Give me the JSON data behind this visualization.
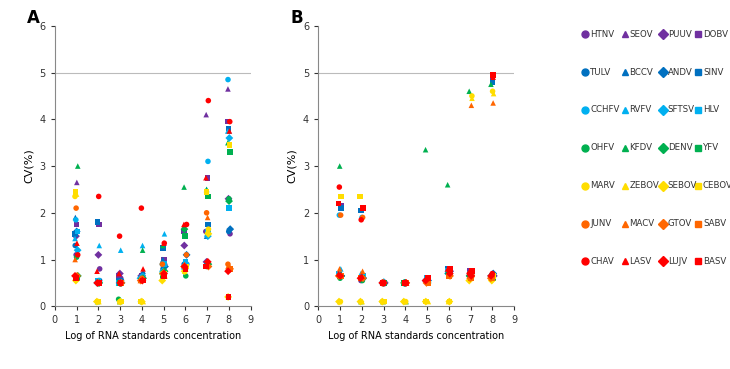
{
  "panel_A_label": "A",
  "panel_B_label": "B",
  "xlabel": "Log of RNA standards concentration",
  "ylabel": "CV(%)",
  "ylim": [
    0,
    6
  ],
  "xlim": [
    0,
    9
  ],
  "yticks": [
    0,
    1,
    2,
    3,
    4,
    5,
    6
  ],
  "xticks": [
    0,
    1,
    2,
    3,
    4,
    5,
    6,
    7,
    8,
    9
  ],
  "hline_y": 5,
  "series": [
    {
      "name": "HTNV",
      "color": "#7030A0",
      "marker": "o"
    },
    {
      "name": "SEOV",
      "color": "#7030A0",
      "marker": "^"
    },
    {
      "name": "PUUV",
      "color": "#7030A0",
      "marker": "D"
    },
    {
      "name": "DOBV",
      "color": "#7030A0",
      "marker": "s"
    },
    {
      "name": "TULV",
      "color": "#0070C0",
      "marker": "o"
    },
    {
      "name": "BCCV",
      "color": "#0070C0",
      "marker": "^"
    },
    {
      "name": "ANDV",
      "color": "#0070C0",
      "marker": "D"
    },
    {
      "name": "SINV",
      "color": "#0070C0",
      "marker": "s"
    },
    {
      "name": "CCHFV",
      "color": "#00B0F0",
      "marker": "o"
    },
    {
      "name": "RVFV",
      "color": "#00B0F0",
      "marker": "^"
    },
    {
      "name": "SFTSV",
      "color": "#00B0F0",
      "marker": "D"
    },
    {
      "name": "HLV",
      "color": "#00B0F0",
      "marker": "s"
    },
    {
      "name": "OHFV",
      "color": "#00B050",
      "marker": "o"
    },
    {
      "name": "KFDV",
      "color": "#00B050",
      "marker": "^"
    },
    {
      "name": "DENV",
      "color": "#00B050",
      "marker": "D"
    },
    {
      "name": "YFV",
      "color": "#00B050",
      "marker": "s"
    },
    {
      "name": "MARV",
      "color": "#FFDD00",
      "marker": "o"
    },
    {
      "name": "ZEBOV",
      "color": "#FFDD00",
      "marker": "^"
    },
    {
      "name": "SEBOV",
      "color": "#FFDD00",
      "marker": "D"
    },
    {
      "name": "CEBOV",
      "color": "#FFDD00",
      "marker": "s"
    },
    {
      "name": "JUNV",
      "color": "#FF6600",
      "marker": "o"
    },
    {
      "name": "MACV",
      "color": "#FF6600",
      "marker": "^"
    },
    {
      "name": "GTOV",
      "color": "#FF6600",
      "marker": "D"
    },
    {
      "name": "SABV",
      "color": "#FF6600",
      "marker": "s"
    },
    {
      "name": "CHAV",
      "color": "#FF0000",
      "marker": "o"
    },
    {
      "name": "LASV",
      "color": "#FF0000",
      "marker": "^"
    },
    {
      "name": "LUJV",
      "color": "#FF0000",
      "marker": "D"
    },
    {
      "name": "BASV",
      "color": "#FF0000",
      "marker": "s"
    }
  ],
  "panel_A_data": {
    "x_vals": [
      1,
      2,
      3,
      4,
      5,
      6,
      7,
      8
    ],
    "HTNV": [
      1.1,
      0.8,
      0.6,
      0.65,
      0.7,
      0.85,
      1.6,
      1.55
    ],
    "SEOV": [
      2.65,
      0.5,
      0.5,
      0.7,
      0.8,
      0.9,
      4.1,
      4.65
    ],
    "PUUV": [
      1.5,
      1.1,
      0.7,
      0.65,
      0.9,
      1.3,
      0.95,
      2.3
    ],
    "DOBV": [
      1.75,
      1.75,
      0.65,
      0.65,
      1.0,
      1.6,
      2.75,
      3.95
    ],
    "TULV": [
      1.3,
      0.55,
      0.55,
      0.6,
      0.8,
      0.9,
      1.55,
      1.6
    ],
    "BCCV": [
      1.9,
      0.55,
      0.55,
      0.75,
      1.0,
      0.95,
      1.5,
      3.75
    ],
    "ANDV": [
      1.6,
      0.5,
      0.5,
      0.6,
      0.85,
      1.1,
      0.9,
      1.65
    ],
    "SINV": [
      1.55,
      1.8,
      0.55,
      0.6,
      1.25,
      1.5,
      1.75,
      3.8
    ],
    "CCHFV": [
      1.85,
      0.55,
      0.5,
      0.65,
      0.9,
      0.9,
      3.1,
      4.85
    ],
    "RVFV": [
      1.45,
      1.3,
      1.2,
      1.3,
      1.55,
      1.7,
      2.5,
      3.75
    ],
    "SFTSV": [
      1.2,
      0.5,
      0.5,
      0.6,
      0.75,
      0.8,
      1.5,
      3.6
    ],
    "HLV": [
      1.6,
      0.55,
      0.5,
      0.6,
      0.9,
      0.95,
      1.6,
      2.1
    ],
    "OHFV": [
      1.05,
      0.5,
      0.15,
      0.1,
      0.7,
      0.65,
      0.85,
      2.3
    ],
    "KFDV": [
      3.0,
      0.1,
      0.1,
      1.2,
      1.3,
      2.55,
      2.5,
      3.5
    ],
    "DENV": [
      0.65,
      0.5,
      0.5,
      0.6,
      0.75,
      1.65,
      0.9,
      2.25
    ],
    "YFV": [
      0.6,
      0.5,
      0.5,
      0.55,
      0.65,
      1.5,
      2.35,
      3.3
    ],
    "MARV": [
      2.35,
      0.1,
      0.1,
      0.1,
      0.7,
      0.85,
      1.65,
      0.2
    ],
    "ZEBOV": [
      2.4,
      0.1,
      0.1,
      0.1,
      0.65,
      0.75,
      1.6,
      0.2
    ],
    "SEBOV": [
      0.55,
      0.1,
      0.1,
      0.1,
      0.55,
      0.75,
      1.55,
      0.2
    ],
    "CEBOV": [
      2.45,
      0.1,
      0.1,
      0.1,
      0.7,
      0.85,
      2.45,
      3.45
    ],
    "JUNV": [
      2.1,
      0.5,
      0.5,
      0.6,
      0.9,
      1.1,
      2.0,
      0.9
    ],
    "MACV": [
      1.0,
      0.5,
      0.5,
      0.55,
      0.75,
      0.9,
      1.9,
      0.85
    ],
    "GTOV": [
      0.65,
      0.5,
      0.5,
      0.55,
      0.7,
      0.85,
      0.85,
      0.8
    ],
    "SABV": [
      0.6,
      0.5,
      0.5,
      0.55,
      0.65,
      0.85,
      0.85,
      0.8
    ],
    "CHAV": [
      1.1,
      2.35,
      1.5,
      2.1,
      1.35,
      1.75,
      4.4,
      3.95
    ],
    "LASV": [
      1.35,
      0.75,
      0.7,
      0.8,
      1.35,
      1.75,
      2.75,
      3.75
    ],
    "LUJV": [
      0.65,
      0.5,
      0.5,
      0.55,
      0.7,
      0.85,
      0.95,
      0.75
    ],
    "BASV": [
      0.6,
      0.5,
      0.5,
      0.55,
      0.65,
      0.8,
      0.85,
      0.2
    ]
  },
  "panel_B_data": {
    "x_vals": [
      1,
      2,
      3,
      4,
      5,
      6,
      7,
      8
    ],
    "HTNV": [
      0.65,
      0.55,
      0.5,
      0.5,
      0.5,
      0.7,
      0.65,
      0.65
    ],
    "SEOV": [
      0.7,
      0.65,
      0.5,
      0.5,
      0.6,
      0.8,
      0.75,
      0.7
    ],
    "PUUV": [
      0.65,
      0.6,
      0.5,
      0.5,
      0.55,
      0.75,
      0.7,
      0.65
    ],
    "DOBV": [
      2.15,
      2.1,
      0.5,
      0.5,
      0.6,
      0.8,
      0.75,
      4.85
    ],
    "TULV": [
      0.65,
      0.6,
      0.5,
      0.5,
      0.55,
      0.7,
      0.65,
      0.65
    ],
    "BCCV": [
      0.7,
      0.65,
      0.5,
      0.5,
      0.6,
      0.75,
      0.7,
      0.7
    ],
    "ANDV": [
      0.65,
      0.6,
      0.5,
      0.5,
      0.55,
      0.75,
      0.7,
      0.7
    ],
    "SINV": [
      2.1,
      2.05,
      0.5,
      0.5,
      0.6,
      0.8,
      0.7,
      4.8
    ],
    "CCHFV": [
      1.95,
      1.9,
      0.5,
      0.5,
      0.55,
      0.7,
      0.65,
      0.65
    ],
    "RVFV": [
      0.8,
      0.7,
      0.55,
      0.5,
      0.6,
      0.8,
      0.75,
      0.7
    ],
    "SFTSV": [
      0.65,
      0.6,
      0.5,
      0.5,
      0.55,
      0.7,
      0.65,
      0.65
    ],
    "HLV": [
      0.7,
      0.65,
      0.5,
      0.5,
      0.6,
      0.75,
      0.7,
      0.65
    ],
    "OHFV": [
      0.6,
      0.55,
      0.5,
      0.5,
      0.5,
      0.65,
      0.6,
      0.6
    ],
    "KFDV": [
      3.0,
      0.1,
      0.1,
      0.1,
      3.35,
      2.6,
      4.6,
      4.75
    ],
    "DENV": [
      0.65,
      0.6,
      0.5,
      0.5,
      0.55,
      0.7,
      0.65,
      0.6
    ],
    "YFV": [
      0.65,
      0.6,
      0.5,
      0.5,
      0.55,
      0.7,
      0.65,
      0.6
    ],
    "MARV": [
      0.1,
      0.1,
      0.1,
      0.1,
      0.1,
      0.1,
      4.5,
      4.6
    ],
    "ZEBOV": [
      0.1,
      0.1,
      0.1,
      0.1,
      0.1,
      0.1,
      4.45,
      4.55
    ],
    "SEBOV": [
      0.1,
      0.1,
      0.1,
      0.1,
      0.1,
      0.1,
      0.55,
      0.55
    ],
    "CEBOV": [
      2.35,
      2.35,
      0.1,
      0.1,
      0.1,
      0.1,
      0.65,
      0.65
    ],
    "JUNV": [
      1.95,
      1.9,
      0.5,
      0.5,
      0.55,
      0.7,
      0.65,
      0.65
    ],
    "MACV": [
      0.8,
      0.75,
      0.5,
      0.5,
      0.55,
      0.8,
      4.3,
      4.35
    ],
    "GTOV": [
      0.65,
      0.6,
      0.5,
      0.5,
      0.5,
      0.65,
      0.6,
      0.6
    ],
    "SABV": [
      0.65,
      0.6,
      0.5,
      0.5,
      0.5,
      0.65,
      0.6,
      0.6
    ],
    "CHAV": [
      2.55,
      1.85,
      0.5,
      0.5,
      0.6,
      0.75,
      0.7,
      0.7
    ],
    "LASV": [
      0.7,
      0.65,
      0.5,
      0.5,
      0.6,
      0.8,
      0.75,
      4.9
    ],
    "LUJV": [
      0.65,
      0.6,
      0.5,
      0.5,
      0.55,
      0.7,
      0.65,
      0.65
    ],
    "BASV": [
      2.2,
      2.1,
      0.5,
      0.5,
      0.6,
      0.8,
      0.75,
      4.95
    ]
  },
  "legend_rows": [
    [
      [
        "HTNV",
        "#7030A0",
        "o"
      ],
      [
        "SEOV",
        "#7030A0",
        "^"
      ],
      [
        "PUUV",
        "#7030A0",
        "D"
      ],
      [
        "DOBV",
        "#7030A0",
        "s"
      ]
    ],
    [
      [
        "TULV",
        "#0070C0",
        "o"
      ],
      [
        "BCCV",
        "#0070C0",
        "^"
      ],
      [
        "ANDV",
        "#0070C0",
        "D"
      ],
      [
        "SINV",
        "#0070C0",
        "s"
      ]
    ],
    [
      [
        "CCHFV",
        "#00B0F0",
        "o"
      ],
      [
        "RVFV",
        "#00B0F0",
        "^"
      ],
      [
        "SFTSV",
        "#00B0F0",
        "D"
      ],
      [
        "HLV",
        "#00B0F0",
        "s"
      ]
    ],
    [
      [
        "OHFV",
        "#00B050",
        "o"
      ],
      [
        "KFDV",
        "#00B050",
        "^"
      ],
      [
        "DENV",
        "#00B050",
        "D"
      ],
      [
        "YFV",
        "#00B050",
        "s"
      ]
    ],
    [
      [
        "MARV",
        "#FFDD00",
        "o"
      ],
      [
        "ZEBOV",
        "#FFDD00",
        "^"
      ],
      [
        "SEBOV",
        "#FFDD00",
        "D"
      ],
      [
        "CEBOV",
        "#FFDD00",
        "s"
      ]
    ],
    [
      [
        "JUNV",
        "#FF6600",
        "o"
      ],
      [
        "MACV",
        "#FF6600",
        "^"
      ],
      [
        "GTOV",
        "#FF6600",
        "D"
      ],
      [
        "SABV",
        "#FF6600",
        "s"
      ]
    ],
    [
      [
        "CHAV",
        "#FF0000",
        "o"
      ],
      [
        "LASV",
        "#FF0000",
        "^"
      ],
      [
        "LUJV",
        "#FF0000",
        "D"
      ],
      [
        "BASV",
        "#FF0000",
        "s"
      ]
    ]
  ]
}
